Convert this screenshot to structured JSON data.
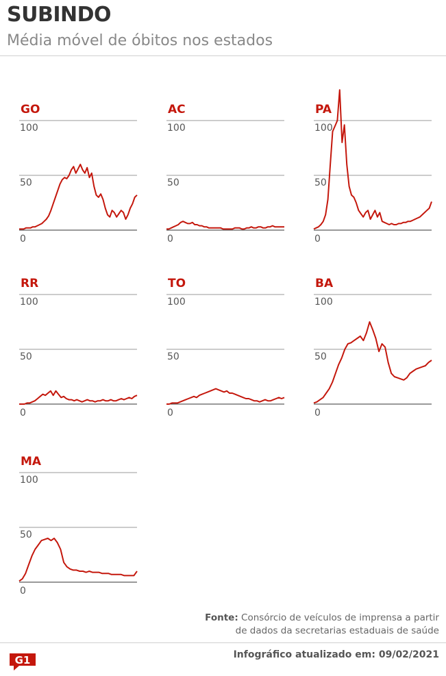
{
  "header": {
    "title": "SUBINDO",
    "subtitle": "Média móvel de óbitos nos estados"
  },
  "footer": {
    "source_label": "Fonte:",
    "source_line1": "Consórcio de veículos de imprensa a partir",
    "source_line2": "de dados da secretarias estaduais de saúde",
    "updated_label": "Infográfico atualizado em:",
    "updated_date": "09/02/2021",
    "logo_text": "G1"
  },
  "colors": {
    "line": "#c4170c",
    "label": "#c4170c",
    "grid": "#9a9a9a",
    "axis": "#333333",
    "logo": "#c4170c"
  },
  "chart_data": [
    {
      "type": "line",
      "title": "GO",
      "yticks": [
        "100",
        "50",
        "0"
      ],
      "ylim": [
        0,
        100
      ],
      "values": [
        1,
        1,
        1,
        2,
        2,
        2,
        3,
        3,
        4,
        5,
        6,
        8,
        10,
        13,
        18,
        24,
        30,
        36,
        42,
        46,
        48,
        47,
        50,
        55,
        58,
        52,
        56,
        60,
        55,
        52,
        57,
        48,
        52,
        40,
        32,
        30,
        33,
        28,
        20,
        14,
        12,
        18,
        16,
        12,
        15,
        18,
        16,
        10,
        14,
        20,
        24,
        30,
        32
      ]
    },
    {
      "type": "line",
      "title": "AC",
      "yticks": [
        "100",
        "50",
        "0"
      ],
      "ylim": [
        0,
        100
      ],
      "values": [
        1,
        1,
        2,
        3,
        4,
        5,
        7,
        8,
        7,
        6,
        6,
        7,
        5,
        5,
        4,
        4,
        3,
        3,
        2,
        2,
        2,
        2,
        2,
        2,
        1,
        1,
        1,
        1,
        1,
        2,
        2,
        2,
        1,
        1,
        2,
        2,
        3,
        2,
        2,
        3,
        3,
        2,
        2,
        3,
        3,
        4,
        3,
        3,
        3,
        3,
        3
      ]
    },
    {
      "type": "line",
      "title": "PA",
      "yticks": [
        "100",
        "50",
        "0"
      ],
      "ylim": [
        0,
        100
      ],
      "values": [
        1,
        2,
        3,
        5,
        8,
        14,
        28,
        60,
        90,
        95,
        100,
        128,
        80,
        96,
        60,
        40,
        32,
        30,
        25,
        18,
        15,
        12,
        16,
        18,
        10,
        14,
        18,
        12,
        16,
        8,
        7,
        6,
        5,
        6,
        5,
        5,
        6,
        6,
        7,
        7,
        8,
        8,
        9,
        10,
        11,
        12,
        14,
        16,
        18,
        20,
        26
      ]
    },
    {
      "type": "line",
      "title": "RR",
      "yticks": [
        "100",
        "50",
        "0"
      ],
      "ylim": [
        0,
        100
      ],
      "values": [
        0,
        0,
        0,
        1,
        1,
        2,
        3,
        5,
        7,
        9,
        8,
        10,
        12,
        8,
        12,
        9,
        6,
        7,
        5,
        4,
        4,
        3,
        4,
        3,
        2,
        3,
        4,
        3,
        3,
        2,
        3,
        3,
        4,
        3,
        3,
        4,
        3,
        3,
        4,
        5,
        4,
        5,
        6,
        5,
        7,
        8
      ]
    },
    {
      "type": "line",
      "title": "TO",
      "yticks": [
        "100",
        "50",
        "0"
      ],
      "ylim": [
        0,
        100
      ],
      "values": [
        0,
        0,
        1,
        1,
        1,
        2,
        3,
        4,
        5,
        6,
        7,
        6,
        8,
        9,
        10,
        11,
        12,
        13,
        14,
        13,
        12,
        11,
        12,
        10,
        10,
        9,
        8,
        7,
        6,
        5,
        5,
        4,
        3,
        3,
        2,
        3,
        4,
        3,
        3,
        4,
        5,
        6,
        5,
        6
      ]
    },
    {
      "type": "line",
      "title": "BA",
      "yticks": [
        "100",
        "50",
        "0"
      ],
      "ylim": [
        0,
        100
      ],
      "values": [
        1,
        2,
        4,
        6,
        10,
        14,
        20,
        28,
        36,
        42,
        50,
        55,
        56,
        58,
        60,
        62,
        58,
        65,
        75,
        68,
        60,
        48,
        55,
        52,
        38,
        28,
        25,
        24,
        23,
        22,
        24,
        28,
        30,
        32,
        33,
        34,
        35,
        38,
        40
      ]
    },
    {
      "type": "line",
      "title": "MA",
      "yticks": [
        "100",
        "50",
        "0"
      ],
      "ylim": [
        0,
        100
      ],
      "values": [
        1,
        3,
        8,
        16,
        24,
        30,
        34,
        38,
        39,
        40,
        38,
        40,
        36,
        30,
        18,
        14,
        12,
        11,
        11,
        10,
        10,
        9,
        10,
        9,
        9,
        9,
        8,
        8,
        8,
        7,
        7,
        7,
        7,
        6,
        6,
        6,
        6,
        10
      ]
    }
  ]
}
